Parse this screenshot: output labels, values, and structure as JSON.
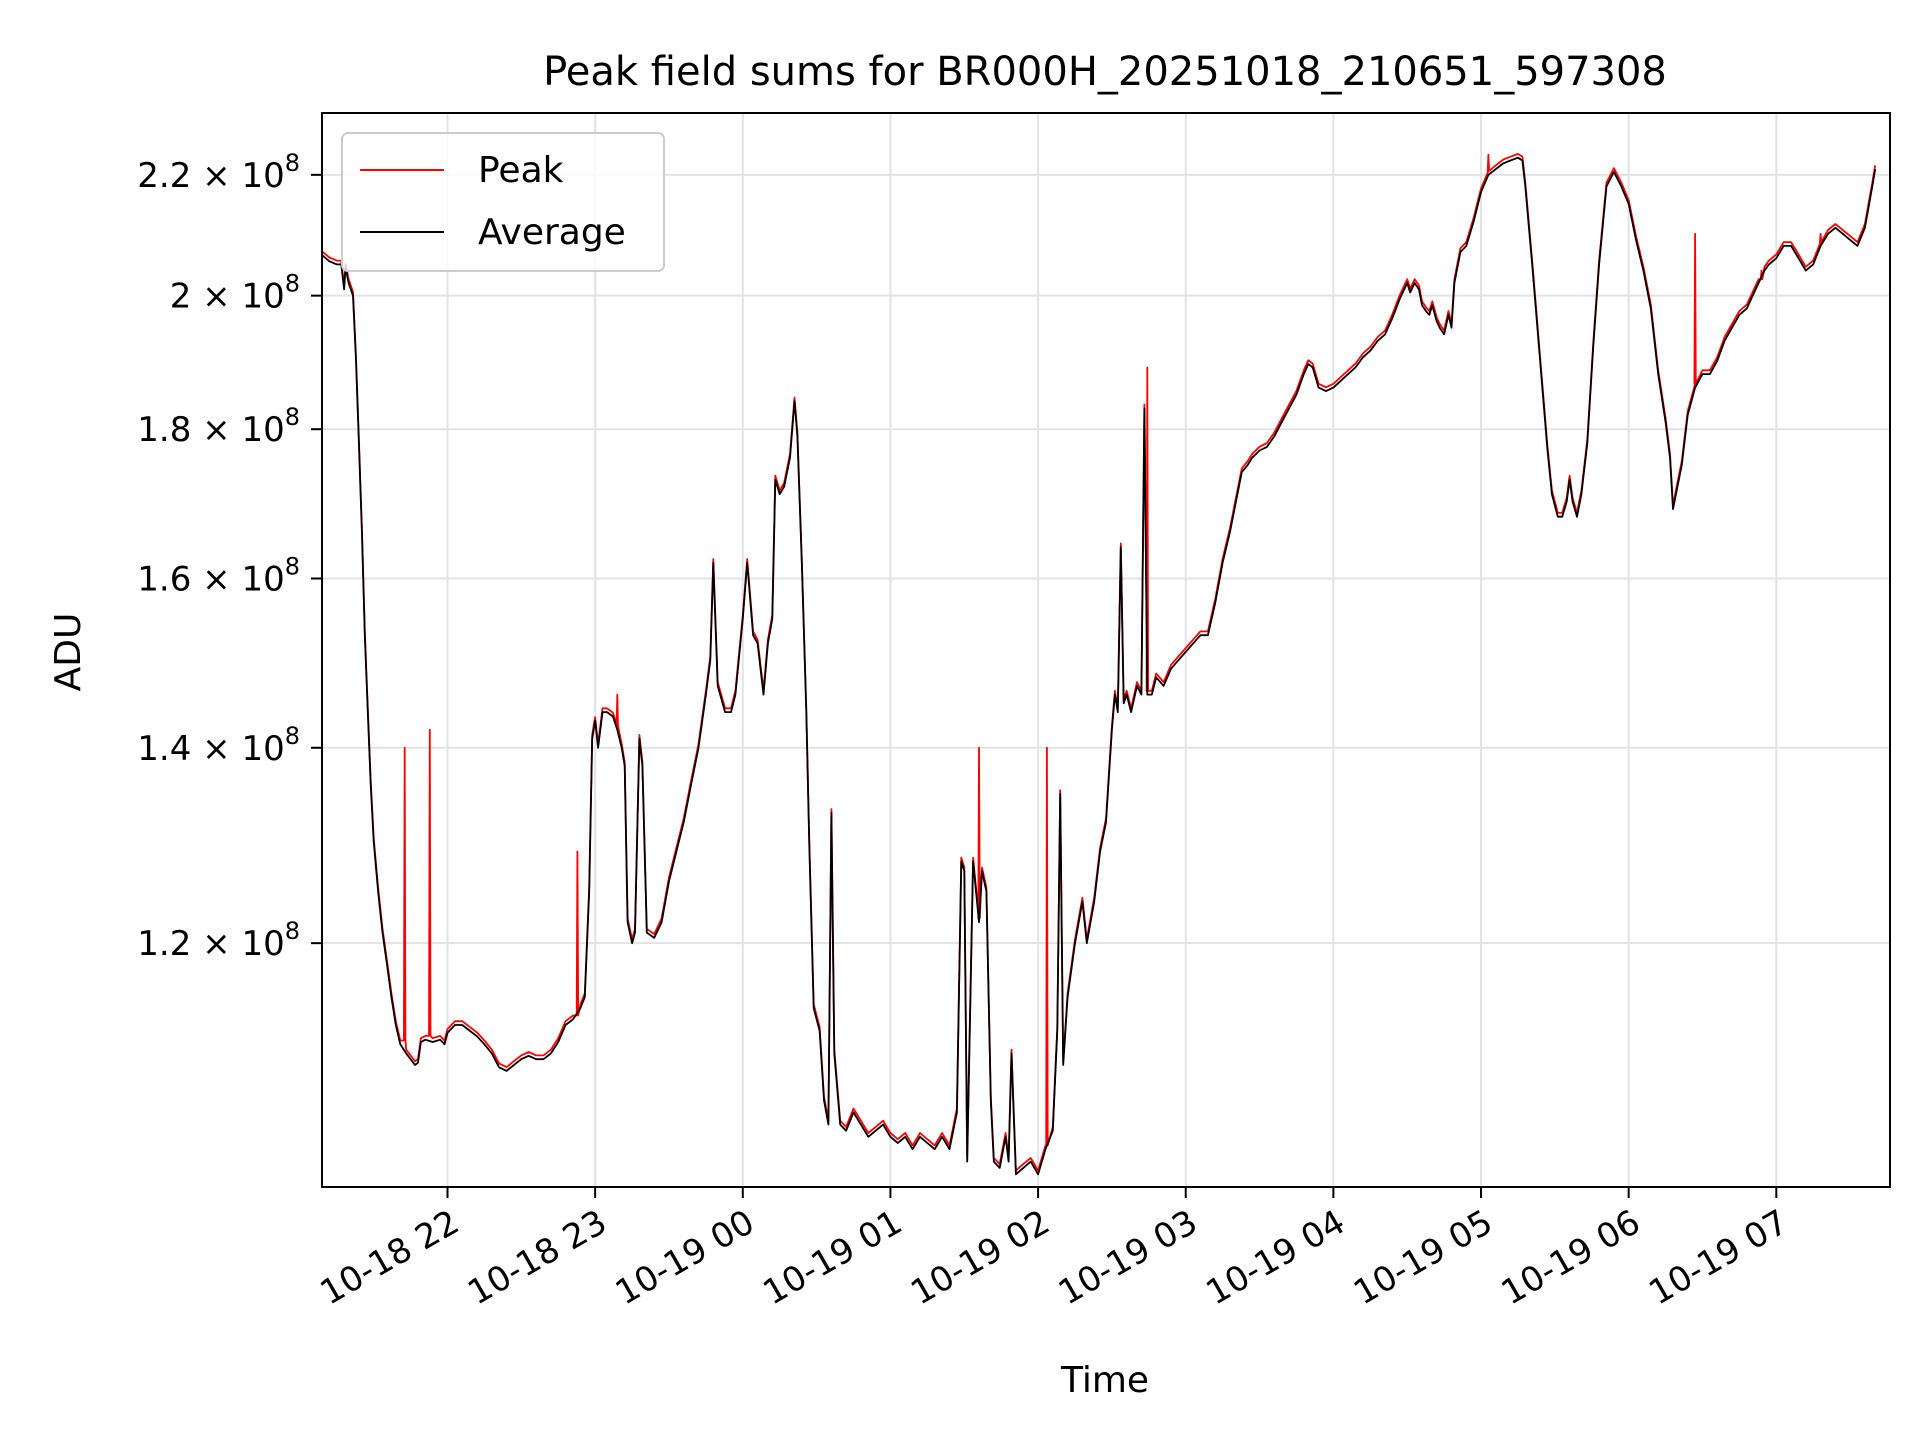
{
  "chart_data": {
    "type": "line",
    "title": "Peak field sums for BR000H_20251018_210651_597308",
    "xlabel": "Time",
    "ylabel": "ADU",
    "yscale": "log",
    "xlim": [
      -0.85,
      9.77
    ],
    "ylim": [
      99000000.0,
      231000000.0
    ],
    "grid": true,
    "legend_loc": "upper left",
    "x_unit": "hours after 2025-10-18 22:00",
    "x_ticks": [
      0,
      1,
      2,
      3,
      4,
      5,
      6,
      7,
      8,
      9
    ],
    "x_tick_labels": [
      "10-18 22",
      "10-18 23",
      "10-19 00",
      "10-19 01",
      "10-19 02",
      "10-19 03",
      "10-19 04",
      "10-19 05",
      "10-19 06",
      "10-19 07"
    ],
    "y_ticks": [
      120000000.0,
      140000000.0,
      160000000.0,
      180000000.0,
      200000000.0,
      220000000.0
    ],
    "y_tick_labels": [
      {
        "mantissa": "1.2",
        "base": "10",
        "exp": "8"
      },
      {
        "mantissa": "1.4",
        "base": "10",
        "exp": "8"
      },
      {
        "mantissa": "1.6",
        "base": "10",
        "exp": "8"
      },
      {
        "mantissa": "1.8",
        "base": "10",
        "exp": "8"
      },
      {
        "mantissa": "2",
        "base": "10",
        "exp": "8"
      },
      {
        "mantissa": "2.2",
        "base": "10",
        "exp": "8"
      }
    ],
    "series": [
      {
        "name": "Peak",
        "color": "#ff0000",
        "points": [
          [
            -0.85,
            206000000.0
          ],
          [
            -0.78,
            204000000.0
          ],
          [
            -0.72,
            204000000.0
          ],
          [
            -0.7,
            200000000.0
          ],
          [
            -0.68,
            204000000.0
          ],
          [
            -0.65,
            200000000.0
          ],
          [
            -0.62,
            182000000.0
          ],
          [
            -0.6,
            170000000.0
          ],
          [
            -0.57,
            158000000.0
          ],
          [
            -0.55,
            148000000.0
          ],
          [
            -0.52,
            140000000.0
          ],
          [
            -0.5,
            133000000.0
          ],
          [
            -0.45,
            126000000.0
          ],
          [
            -0.4,
            120000000.0
          ],
          [
            -0.35,
            115000000.0
          ],
          [
            -0.3,
            111000000.0
          ],
          [
            -0.25,
            109000000.0
          ],
          [
            -0.2,
            108000000.0
          ],
          [
            -0.3,
            111000000.0
          ],
          [
            -0.2,
            108000000.0
          ],
          [
            -0.3,
            111000000.0
          ],
          [
            -0.28,
            111000000.0
          ],
          [
            -0.3,
            110500000.0
          ],
          [
            -0.29,
            111000000.0
          ],
          [
            -0.3,
            111000000.0
          ],
          [
            -0.35,
            115000000.0
          ]
        ],
        "x": [],
        "values": []
      },
      {
        "name": "Average",
        "color": "#000000",
        "x": [],
        "values": []
      }
    ]
  }
}
